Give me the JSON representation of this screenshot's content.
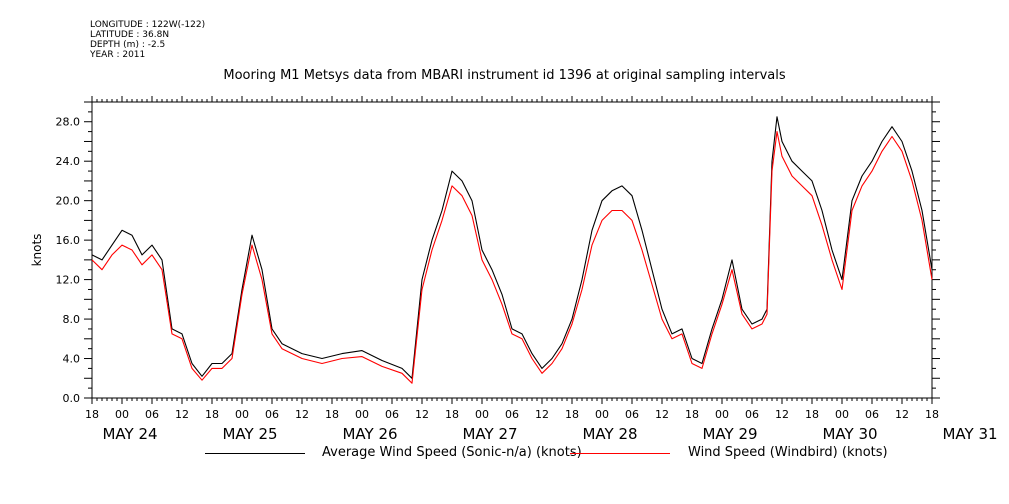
{
  "header": {
    "meta_lines": [
      "LONGITUDE : 122W(-122)",
      "LATITUDE : 36.8N",
      "DEPTH (m) : -2.5",
      "YEAR : 2011"
    ],
    "title": "Mooring M1 Metsys data from MBARI instrument id 1396 at original sampling intervals"
  },
  "legend": {
    "entries": [
      {
        "label": "Average Wind Speed (Sonic-n/a) (knots)",
        "color": "#000000"
      },
      {
        "label": "Wind Speed (Windbird) (knots)",
        "color": "#ff0000"
      }
    ]
  },
  "chart_data": {
    "type": "line",
    "title": "Mooring M1 Metsys data from MBARI instrument id 1396 at original sampling intervals",
    "xlabel": "",
    "ylabel": "knots",
    "ylim": [
      0,
      30
    ],
    "xlim_hours_from_may24_00": [
      -6,
      162
    ],
    "yticks": [
      "0.0",
      "4.0",
      "8.0",
      "12.0",
      "16.0",
      "20.0",
      "24.0",
      "28.0"
    ],
    "xticks_hour_labels": [
      "18",
      "00",
      "06",
      "12",
      "18",
      "00",
      "06",
      "12",
      "18",
      "00",
      "06",
      "12",
      "18",
      "00",
      "06",
      "12",
      "18",
      "00",
      "06",
      "12",
      "18",
      "00",
      "06",
      "12",
      "18",
      "00",
      "06",
      "12",
      "18"
    ],
    "date_labels": [
      "MAY 24",
      "MAY 25",
      "MAY 26",
      "MAY 27",
      "MAY 28",
      "MAY 29",
      "MAY 30",
      "MAY 31"
    ],
    "grid": false,
    "legend_position": "bottom",
    "series": [
      {
        "name": "Average Wind Speed (Sonic-n/a) (knots)",
        "color": "#000000",
        "points": [
          [
            -6,
            14.5
          ],
          [
            -4,
            14.0
          ],
          [
            -2,
            15.5
          ],
          [
            0,
            17.0
          ],
          [
            2,
            16.5
          ],
          [
            4,
            14.5
          ],
          [
            6,
            15.5
          ],
          [
            8,
            14.0
          ],
          [
            10,
            7.0
          ],
          [
            12,
            6.5
          ],
          [
            14,
            3.5
          ],
          [
            16,
            2.2
          ],
          [
            18,
            3.5
          ],
          [
            20,
            3.5
          ],
          [
            22,
            4.5
          ],
          [
            24,
            11.0
          ],
          [
            26,
            16.5
          ],
          [
            28,
            13.0
          ],
          [
            30,
            7.0
          ],
          [
            32,
            5.5
          ],
          [
            36,
            4.5
          ],
          [
            40,
            4.0
          ],
          [
            44,
            4.5
          ],
          [
            48,
            4.8
          ],
          [
            52,
            3.8
          ],
          [
            56,
            3.0
          ],
          [
            58,
            2.0
          ],
          [
            60,
            12.0
          ],
          [
            62,
            16.0
          ],
          [
            64,
            19.0
          ],
          [
            66,
            23.0
          ],
          [
            68,
            22.0
          ],
          [
            70,
            20.0
          ],
          [
            72,
            15.0
          ],
          [
            74,
            13.0
          ],
          [
            76,
            10.5
          ],
          [
            78,
            7.0
          ],
          [
            80,
            6.5
          ],
          [
            82,
            4.5
          ],
          [
            84,
            3.0
          ],
          [
            86,
            4.0
          ],
          [
            88,
            5.5
          ],
          [
            90,
            8.0
          ],
          [
            92,
            12.0
          ],
          [
            94,
            17.0
          ],
          [
            96,
            20.0
          ],
          [
            98,
            21.0
          ],
          [
            100,
            21.5
          ],
          [
            102,
            20.5
          ],
          [
            104,
            17.0
          ],
          [
            106,
            13.0
          ],
          [
            108,
            9.0
          ],
          [
            110,
            6.5
          ],
          [
            112,
            7.0
          ],
          [
            114,
            4.0
          ],
          [
            116,
            3.5
          ],
          [
            118,
            7.0
          ],
          [
            120,
            10.0
          ],
          [
            122,
            14.0
          ],
          [
            124,
            9.0
          ],
          [
            126,
            7.5
          ],
          [
            128,
            8.0
          ],
          [
            129,
            9.0
          ],
          [
            130,
            24.0
          ],
          [
            131,
            28.5
          ],
          [
            132,
            26.0
          ],
          [
            134,
            24.0
          ],
          [
            136,
            23.0
          ],
          [
            138,
            22.0
          ],
          [
            140,
            19.0
          ],
          [
            142,
            15.0
          ],
          [
            144,
            12.0
          ],
          [
            146,
            20.0
          ],
          [
            148,
            22.5
          ],
          [
            150,
            24.0
          ],
          [
            152,
            26.0
          ],
          [
            154,
            27.5
          ],
          [
            156,
            26.0
          ],
          [
            158,
            23.0
          ],
          [
            160,
            19.0
          ],
          [
            162,
            13.0
          ]
        ]
      },
      {
        "name": "Wind Speed (Windbird) (knots)",
        "color": "#ff0000",
        "points": [
          [
            -6,
            14.0
          ],
          [
            -4,
            13.0
          ],
          [
            -2,
            14.5
          ],
          [
            0,
            15.5
          ],
          [
            2,
            15.0
          ],
          [
            4,
            13.5
          ],
          [
            6,
            14.5
          ],
          [
            8,
            13.0
          ],
          [
            10,
            6.5
          ],
          [
            12,
            6.0
          ],
          [
            14,
            3.0
          ],
          [
            16,
            1.8
          ],
          [
            18,
            3.0
          ],
          [
            20,
            3.0
          ],
          [
            22,
            4.0
          ],
          [
            24,
            10.5
          ],
          [
            26,
            15.5
          ],
          [
            28,
            12.0
          ],
          [
            30,
            6.5
          ],
          [
            32,
            5.0
          ],
          [
            36,
            4.0
          ],
          [
            40,
            3.5
          ],
          [
            44,
            4.0
          ],
          [
            48,
            4.2
          ],
          [
            52,
            3.2
          ],
          [
            56,
            2.5
          ],
          [
            58,
            1.5
          ],
          [
            60,
            11.0
          ],
          [
            62,
            15.0
          ],
          [
            64,
            18.0
          ],
          [
            66,
            21.5
          ],
          [
            68,
            20.5
          ],
          [
            70,
            18.5
          ],
          [
            72,
            14.0
          ],
          [
            74,
            12.0
          ],
          [
            76,
            9.5
          ],
          [
            78,
            6.5
          ],
          [
            80,
            6.0
          ],
          [
            82,
            4.0
          ],
          [
            84,
            2.5
          ],
          [
            86,
            3.5
          ],
          [
            88,
            5.0
          ],
          [
            90,
            7.5
          ],
          [
            92,
            11.0
          ],
          [
            94,
            15.5
          ],
          [
            96,
            18.0
          ],
          [
            98,
            19.0
          ],
          [
            100,
            19.0
          ],
          [
            102,
            18.0
          ],
          [
            104,
            15.0
          ],
          [
            106,
            11.5
          ],
          [
            108,
            8.0
          ],
          [
            110,
            6.0
          ],
          [
            112,
            6.5
          ],
          [
            114,
            3.5
          ],
          [
            116,
            3.0
          ],
          [
            118,
            6.5
          ],
          [
            120,
            9.5
          ],
          [
            122,
            13.0
          ],
          [
            124,
            8.5
          ],
          [
            126,
            7.0
          ],
          [
            128,
            7.5
          ],
          [
            129,
            8.5
          ],
          [
            130,
            23.0
          ],
          [
            131,
            27.0
          ],
          [
            132,
            24.5
          ],
          [
            134,
            22.5
          ],
          [
            136,
            21.5
          ],
          [
            138,
            20.5
          ],
          [
            140,
            17.5
          ],
          [
            142,
            14.0
          ],
          [
            144,
            11.0
          ],
          [
            146,
            19.0
          ],
          [
            148,
            21.5
          ],
          [
            150,
            23.0
          ],
          [
            152,
            25.0
          ],
          [
            154,
            26.5
          ],
          [
            156,
            25.0
          ],
          [
            158,
            22.0
          ],
          [
            160,
            18.0
          ],
          [
            162,
            12.0
          ]
        ]
      }
    ]
  }
}
